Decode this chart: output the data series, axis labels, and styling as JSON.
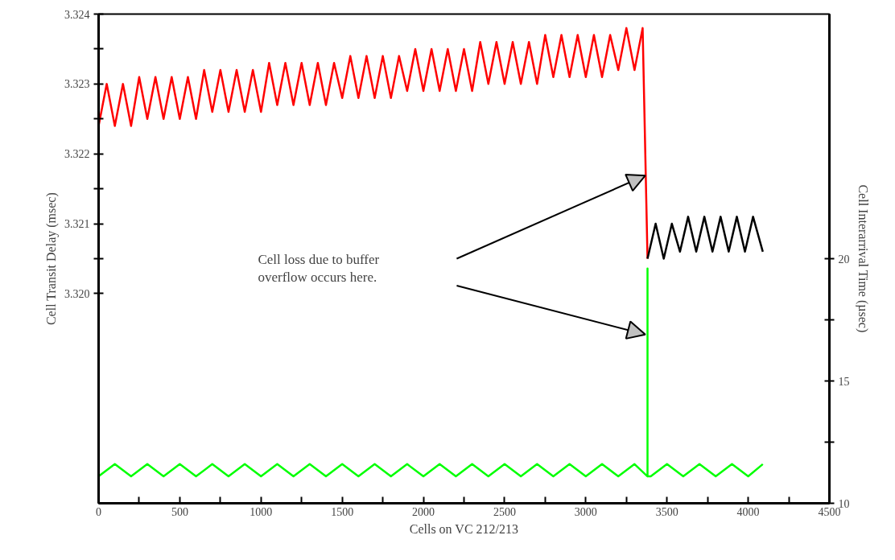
{
  "chart_data": {
    "type": "line",
    "xlabel": "Cells on VC 212/213",
    "ylabel": "Cell Transit Delay (msec)",
    "y2label": "Cell Interarrival Time (µsec)",
    "annotations": [
      "Cell loss due to buffer\noverflow occurs here."
    ],
    "xlim": [
      0,
      4500
    ],
    "xticks": [
      0,
      {
        "value": 250,
        "label": null
      },
      500,
      {
        "value": 750,
        "label": null
      },
      1000,
      {
        "value": 1250,
        "label": null
      },
      1500,
      {
        "value": 1750,
        "label": null
      },
      2000,
      {
        "value": 2250,
        "label": null
      },
      2500,
      {
        "value": 2750,
        "label": null
      },
      3000,
      {
        "value": 3250,
        "label": null
      },
      3500,
      {
        "value": 3750,
        "label": null
      },
      4000,
      {
        "value": 4250,
        "label": null
      },
      4500
    ],
    "ylim": [
      3.317,
      3.324
    ],
    "yticks": [
      {
        "value": 3.32,
        "label": "3.320"
      },
      {
        "value": 3.3205,
        "label": null
      },
      3.321,
      {
        "value": 3.3215,
        "label": null
      },
      3.322,
      {
        "value": 3.3225,
        "label": null
      },
      3.323,
      {
        "value": 3.3235,
        "label": null
      },
      3.324
    ],
    "y2lim": [
      10,
      30
    ],
    "y2ticks": [
      10,
      {
        "value": 12.5,
        "label": null
      },
      15,
      {
        "value": 17.5,
        "label": null
      },
      20
    ],
    "grid": false,
    "marker": "none",
    "line_style": "solid",
    "series": [
      {
        "color": "#ff0000",
        "x": [
          0,
          50,
          100,
          150,
          200,
          250,
          300,
          350,
          400,
          450,
          500,
          550,
          600,
          650,
          700,
          750,
          800,
          850,
          900,
          950,
          1000,
          1050,
          1100,
          1150,
          1200,
          1250,
          1300,
          1350,
          1400,
          1450,
          1500,
          1550,
          1600,
          1650,
          1700,
          1750,
          1800,
          1850,
          1900,
          1950,
          2000,
          2050,
          2100,
          2150,
          2200,
          2250,
          2300,
          2350,
          2400,
          2450,
          2500,
          2550,
          2600,
          2650,
          2700,
          2750,
          2800,
          2850,
          2900,
          2950,
          3000,
          3050,
          3100,
          3150,
          3200,
          3250,
          3300,
          3350,
          3380
        ],
        "values": [
          3.3224,
          3.323,
          3.3224,
          3.323,
          3.3224,
          3.3231,
          3.3225,
          3.3231,
          3.3225,
          3.3231,
          3.3225,
          3.3231,
          3.3225,
          3.3232,
          3.3226,
          3.3232,
          3.3226,
          3.3232,
          3.3226,
          3.3232,
          3.3226,
          3.3233,
          3.3227,
          3.3233,
          3.3227,
          3.3233,
          3.3227,
          3.3233,
          3.3227,
          3.3233,
          3.3228,
          3.3234,
          3.3228,
          3.3234,
          3.3228,
          3.3234,
          3.3228,
          3.3234,
          3.3229,
          3.3235,
          3.3229,
          3.3235,
          3.3229,
          3.3235,
          3.3229,
          3.3235,
          3.3229,
          3.3236,
          3.323,
          3.3236,
          3.323,
          3.3236,
          3.323,
          3.3236,
          3.323,
          3.3237,
          3.3231,
          3.3237,
          3.3231,
          3.3237,
          3.3231,
          3.3237,
          3.3231,
          3.3237,
          3.3232,
          3.3238,
          3.3232,
          3.3238,
          3.3205
        ]
      },
      {
        "color": "#000000",
        "x": [
          3380,
          3430,
          3480,
          3530,
          3580,
          3630,
          3680,
          3730,
          3780,
          3830,
          3880,
          3930,
          3980,
          4030,
          4090
        ],
        "values": [
          3.3205,
          3.321,
          3.3205,
          3.321,
          3.3206,
          3.3211,
          3.3206,
          3.3211,
          3.3206,
          3.3211,
          3.3206,
          3.3211,
          3.3206,
          3.3211,
          3.3206
        ]
      },
      {
        "color": "#00ff00",
        "axis": "y2",
        "x": [
          0,
          100,
          200,
          300,
          400,
          500,
          600,
          700,
          800,
          900,
          1000,
          1100,
          1200,
          1300,
          1400,
          1500,
          1600,
          1700,
          1800,
          1900,
          2000,
          2100,
          2200,
          2300,
          2400,
          2500,
          2600,
          2700,
          2800,
          2900,
          3000,
          3100,
          3200,
          3300,
          3380,
          3380,
          3380,
          3400,
          3500,
          3600,
          3700,
          3800,
          3900,
          4000,
          4090
        ],
        "values": [
          11.1,
          11.6,
          11.1,
          11.6,
          11.1,
          11.6,
          11.1,
          11.6,
          11.1,
          11.6,
          11.1,
          11.6,
          11.1,
          11.6,
          11.1,
          11.6,
          11.1,
          11.6,
          11.1,
          11.6,
          11.1,
          11.6,
          11.1,
          11.6,
          11.1,
          11.6,
          11.1,
          11.6,
          11.1,
          11.6,
          11.1,
          11.6,
          11.1,
          11.6,
          11.1,
          19.6,
          11.1,
          11.1,
          11.6,
          11.1,
          11.6,
          11.1,
          11.6,
          11.1,
          11.6
        ]
      }
    ]
  }
}
